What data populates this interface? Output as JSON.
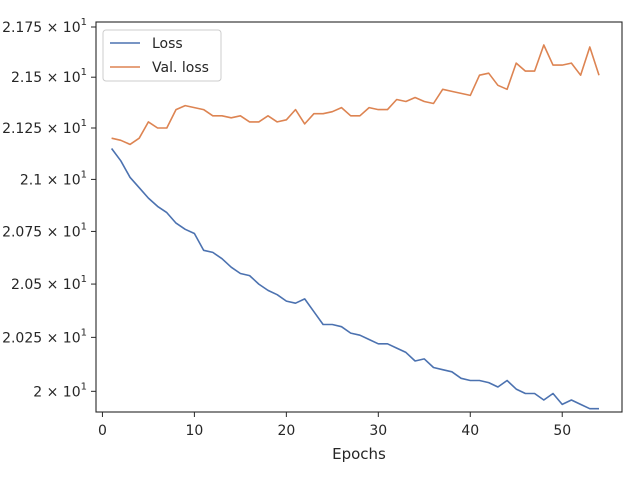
{
  "chart_data": {
    "type": "line",
    "title": "",
    "xlabel": "Epochs",
    "ylabel": "",
    "xlim": [
      -0.7,
      56.5
    ],
    "ylim": [
      19.905,
      21.775
    ],
    "y_scale": "log",
    "x_ticks": [
      {
        "value": 0,
        "label": "0"
      },
      {
        "value": 10,
        "label": "10"
      },
      {
        "value": 20,
        "label": "20"
      },
      {
        "value": 30,
        "label": "30"
      },
      {
        "value": 40,
        "label": "40"
      },
      {
        "value": 50,
        "label": "50"
      }
    ],
    "y_ticks": [
      {
        "value": 20.0,
        "mantissa": "2",
        "base": "10",
        "exp": "1"
      },
      {
        "value": 20.25,
        "mantissa": "2.025",
        "base": "10",
        "exp": "1"
      },
      {
        "value": 20.5,
        "mantissa": "2.05",
        "base": "10",
        "exp": "1"
      },
      {
        "value": 20.75,
        "mantissa": "2.075",
        "base": "10",
        "exp": "1"
      },
      {
        "value": 21.0,
        "mantissa": "2.1",
        "base": "10",
        "exp": "1"
      },
      {
        "value": 21.25,
        "mantissa": "2.125",
        "base": "10",
        "exp": "1"
      },
      {
        "value": 21.5,
        "mantissa": "2.15",
        "base": "10",
        "exp": "1"
      },
      {
        "value": 21.75,
        "mantissa": "2.175",
        "base": "10",
        "exp": "1"
      }
    ],
    "grid": false,
    "legend_position": "top-left",
    "x": [
      1,
      2,
      3,
      4,
      5,
      6,
      7,
      8,
      9,
      10,
      11,
      12,
      13,
      14,
      15,
      16,
      17,
      18,
      19,
      20,
      21,
      22,
      23,
      24,
      25,
      26,
      27,
      28,
      29,
      30,
      31,
      32,
      33,
      34,
      35,
      36,
      37,
      38,
      39,
      40,
      41,
      42,
      43,
      44,
      45,
      46,
      47,
      48,
      49,
      50,
      51,
      52,
      53,
      54
    ],
    "series": [
      {
        "name": "Loss",
        "color": "#4c72b0",
        "values": [
          21.15,
          21.09,
          21.01,
          20.96,
          20.91,
          20.87,
          20.84,
          20.79,
          20.76,
          20.74,
          20.66,
          20.65,
          20.62,
          20.58,
          20.55,
          20.54,
          20.5,
          20.47,
          20.45,
          20.42,
          20.41,
          20.43,
          20.37,
          20.31,
          20.31,
          20.3,
          20.27,
          20.26,
          20.24,
          20.22,
          20.22,
          20.2,
          20.18,
          20.14,
          20.15,
          20.11,
          20.1,
          20.09,
          20.06,
          20.05,
          20.05,
          20.04,
          20.02,
          20.05,
          20.01,
          19.99,
          19.99,
          19.96,
          19.99,
          19.94,
          19.96,
          19.94,
          19.92,
          19.92
        ]
      },
      {
        "name": "Val. loss",
        "color": "#dd8452",
        "values": [
          21.2,
          21.19,
          21.17,
          21.2,
          21.28,
          21.25,
          21.25,
          21.34,
          21.36,
          21.35,
          21.34,
          21.31,
          21.31,
          21.3,
          21.31,
          21.28,
          21.28,
          21.31,
          21.28,
          21.29,
          21.34,
          21.27,
          21.32,
          21.32,
          21.33,
          21.35,
          21.31,
          21.31,
          21.35,
          21.34,
          21.34,
          21.39,
          21.38,
          21.4,
          21.38,
          21.37,
          21.44,
          21.43,
          21.42,
          21.41,
          21.51,
          21.52,
          21.46,
          21.44,
          21.57,
          21.53,
          21.53,
          21.66,
          21.56,
          21.56,
          21.57,
          21.51,
          21.65,
          21.51
        ]
      }
    ]
  }
}
